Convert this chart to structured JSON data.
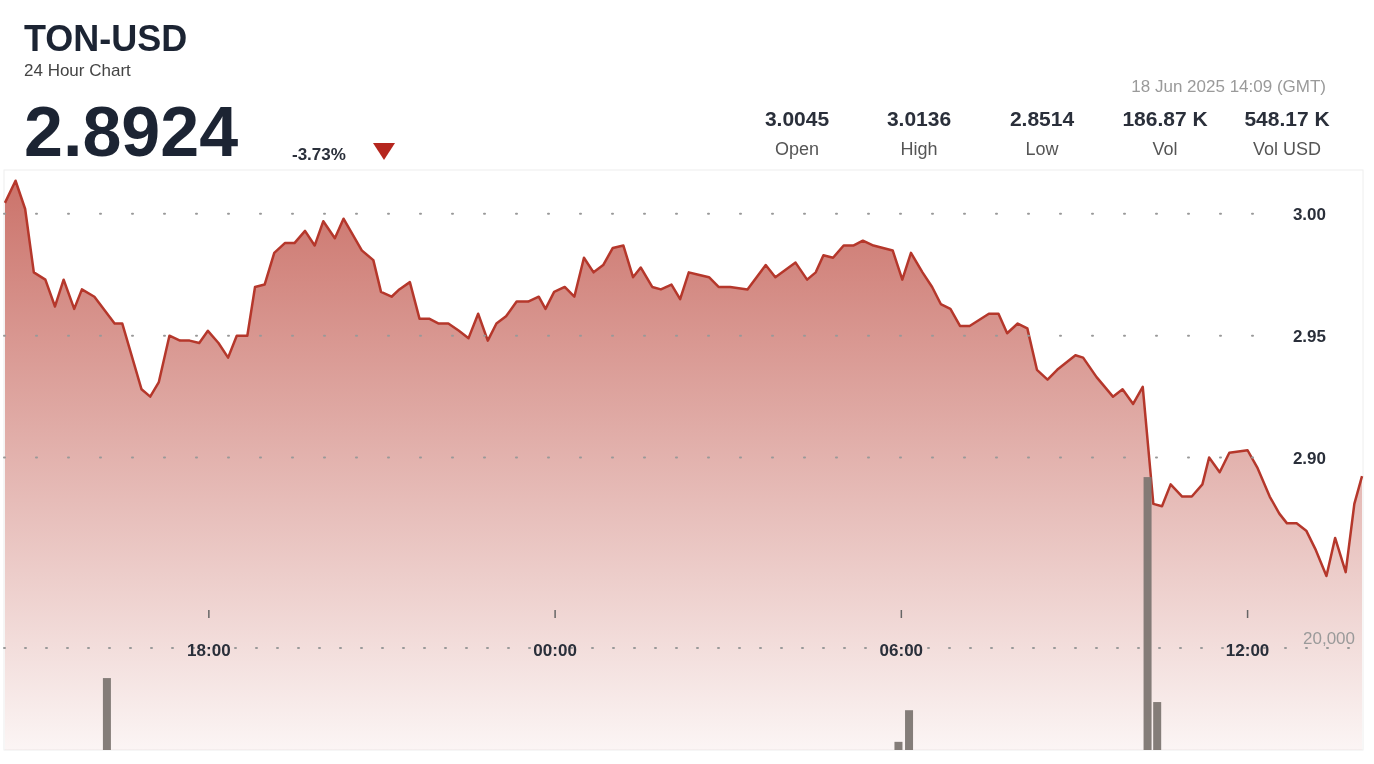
{
  "chart_data": {
    "type": "area",
    "title": "TON-USD",
    "subtitle": "24 Hour Chart",
    "annotations": [
      "2.8924",
      "-3.73%",
      "18 Jun 2025 14:09 (GMT)",
      "3.0045",
      "Open",
      "3.0136",
      "High",
      "2.8514",
      "Low",
      "186.87 K",
      "Vol",
      "548.17 K",
      "Vol USD"
    ],
    "xlim": [
      "2025-06-17T14:27",
      "2025-06-18T14:00"
    ],
    "xticks": [
      {
        "value": "2025-06-17T18:00",
        "label": "18:00"
      },
      {
        "value": "2025-06-18T00:00",
        "label": "00:00"
      },
      {
        "value": "2025-06-18T06:00",
        "label": "06:00"
      },
      {
        "value": "2025-06-18T12:00",
        "label": "12:00"
      }
    ],
    "ylim": [
      2.78,
      3.018
    ],
    "yticks": [
      {
        "value": 2.9,
        "label": "2.90"
      },
      2.95,
      {
        "value": 3,
        "label": "3.00"
      }
    ],
    "y2lim": [
      0,
      113700
    ],
    "y2ticks": [
      {
        "value": 20000,
        "label": "20,000"
      }
    ],
    "grid": "y",
    "series": [
      {
        "color": "#b5372b",
        "x": [
          "2025-06-17T14:28",
          "2025-06-17T14:39",
          "2025-06-17T14:49",
          "2025-06-17T14:58",
          "2025-06-17T15:10",
          "2025-06-17T15:20",
          "2025-06-17T15:29",
          "2025-06-17T15:40",
          "2025-06-17T15:48",
          "2025-06-17T16:01",
          "2025-06-17T16:22",
          "2025-06-17T16:30",
          "2025-06-17T16:50",
          "2025-06-17T16:59",
          "2025-06-17T17:08",
          "2025-06-17T17:19",
          "2025-06-17T17:30",
          "2025-06-17T17:40",
          "2025-06-17T17:50",
          "2025-06-17T17:59",
          "2025-06-17T18:10",
          "2025-06-17T18:20",
          "2025-06-17T18:29",
          "2025-06-17T18:40",
          "2025-06-17T18:48",
          "2025-06-17T18:58",
          "2025-06-17T19:08",
          "2025-06-17T19:19",
          "2025-06-17T19:29",
          "2025-06-17T19:40",
          "2025-06-17T19:50",
          "2025-06-17T19:59",
          "2025-06-17T20:11",
          "2025-06-17T20:20",
          "2025-06-17T20:39",
          "2025-06-17T20:51",
          "2025-06-17T20:59",
          "2025-06-17T21:10",
          "2025-06-17T21:18",
          "2025-06-17T21:29",
          "2025-06-17T21:39",
          "2025-06-17T21:49",
          "2025-06-17T21:59",
          "2025-06-17T22:09",
          "2025-06-17T22:20",
          "2025-06-17T22:30",
          "2025-06-17T22:40",
          "2025-06-17T22:50",
          "2025-06-17T22:59",
          "2025-06-17T23:09",
          "2025-06-17T23:20",
          "2025-06-17T23:32",
          "2025-06-17T23:43",
          "2025-06-17T23:50",
          "2025-06-17T23:59",
          "2025-06-18T00:10",
          "2025-06-18T00:20",
          "2025-06-18T00:30",
          "2025-06-18T00:40",
          "2025-06-18T00:50",
          "2025-06-18T01:00",
          "2025-06-18T01:11",
          "2025-06-18T01:21",
          "2025-06-18T01:29",
          "2025-06-18T01:41",
          "2025-06-18T01:50",
          "2025-06-18T02:01",
          "2025-06-18T02:10",
          "2025-06-18T02:19",
          "2025-06-18T02:29",
          "2025-06-18T02:40",
          "2025-06-18T02:50",
          "2025-06-18T03:02",
          "2025-06-18T03:20",
          "2025-06-18T03:39",
          "2025-06-18T03:49",
          "2025-06-18T04:10",
          "2025-06-18T04:22",
          "2025-06-18T04:31",
          "2025-06-18T04:39",
          "2025-06-18T04:49",
          "2025-06-18T05:00",
          "2025-06-18T05:10",
          "2025-06-18T05:20",
          "2025-06-18T05:31",
          "2025-06-18T05:51",
          "2025-06-18T06:01",
          "2025-06-18T06:10",
          "2025-06-18T06:22",
          "2025-06-18T06:32",
          "2025-06-18T06:41",
          "2025-06-18T06:51",
          "2025-06-18T07:01",
          "2025-06-18T07:11",
          "2025-06-18T07:31",
          "2025-06-18T07:41",
          "2025-06-18T07:50",
          "2025-06-18T08:01",
          "2025-06-18T08:11",
          "2025-06-18T08:21",
          "2025-06-18T08:32",
          "2025-06-18T08:42",
          "2025-06-18T09:01",
          "2025-06-18T09:09",
          "2025-06-18T09:23",
          "2025-06-18T09:40",
          "2025-06-18T09:50",
          "2025-06-18T10:01",
          "2025-06-18T10:11",
          "2025-06-18T10:22",
          "2025-06-18T10:31",
          "2025-06-18T10:40",
          "2025-06-18T10:52",
          "2025-06-18T11:02",
          "2025-06-18T11:13",
          "2025-06-18T11:20",
          "2025-06-18T11:31",
          "2025-06-18T11:41",
          "2025-06-18T12:00",
          "2025-06-18T12:10",
          "2025-06-18T12:23",
          "2025-06-18T12:33",
          "2025-06-18T12:41",
          "2025-06-18T12:51",
          "2025-06-18T13:01",
          "2025-06-18T13:11",
          "2025-06-18T13:22",
          "2025-06-18T13:31",
          "2025-06-18T13:42",
          "2025-06-18T13:51",
          "2025-06-18T13:59"
        ],
        "values": [
          3.0045,
          3.0136,
          3.002,
          2.976,
          2.973,
          2.962,
          2.973,
          2.961,
          2.969,
          2.966,
          2.955,
          2.955,
          2.928,
          2.925,
          2.931,
          2.95,
          2.948,
          2.948,
          2.947,
          2.952,
          2.947,
          2.941,
          2.95,
          2.95,
          2.97,
          2.971,
          2.984,
          2.988,
          2.988,
          2.993,
          2.987,
          2.997,
          2.99,
          2.998,
          2.985,
          2.981,
          2.968,
          2.966,
          2.969,
          2.972,
          2.957,
          2.957,
          2.955,
          2.955,
          2.952,
          2.949,
          2.959,
          2.948,
          2.955,
          2.958,
          2.964,
          2.964,
          2.966,
          2.961,
          2.968,
          2.97,
          2.966,
          2.982,
          2.976,
          2.979,
          2.986,
          2.987,
          2.974,
          2.978,
          2.97,
          2.969,
          2.971,
          2.965,
          2.976,
          2.975,
          2.974,
          2.97,
          2.97,
          2.969,
          2.979,
          2.974,
          2.98,
          2.973,
          2.976,
          2.983,
          2.982,
          2.987,
          2.987,
          2.989,
          2.987,
          2.985,
          2.973,
          2.984,
          2.976,
          2.97,
          2.963,
          2.961,
          2.954,
          2.954,
          2.959,
          2.959,
          2.951,
          2.955,
          2.953,
          2.936,
          2.932,
          2.936,
          2.942,
          2.941,
          2.933,
          2.925,
          2.928,
          2.922,
          2.929,
          2.881,
          2.88,
          2.889,
          2.884,
          2.884,
          2.889,
          2.9,
          2.894,
          2.902,
          2.903,
          2.896,
          2.884,
          2.877,
          2.873,
          2.873,
          2.87,
          2.862,
          2.8514,
          2.867,
          2.853,
          2.881,
          2.8924
        ]
      },
      {
        "type": "bar",
        "axis": "y2",
        "color": "#7d7672",
        "x": [
          "2025-06-17T16:14",
          "2025-06-18T05:57",
          "2025-06-18T06:08",
          "2025-06-18T10:16",
          "2025-06-18T10:26"
        ],
        "values": [
          14100,
          1600,
          7800,
          53500,
          9400
        ]
      }
    ]
  }
}
